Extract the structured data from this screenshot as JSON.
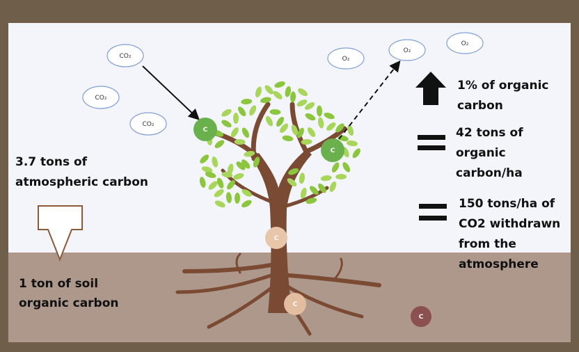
{
  "co2_bubbles": [
    "CO₂",
    "CO₂",
    "CO₂"
  ],
  "o2_bubbles": [
    "O₂",
    "O₂",
    "O₂"
  ],
  "carbon_dots": [
    "C",
    "C",
    "C",
    "C",
    "C"
  ],
  "left": {
    "atmospheric": [
      "3.7 tons of",
      "atmospheric carbon"
    ],
    "soil": [
      "1 ton of soil",
      "organic carbon"
    ]
  },
  "right": [
    [
      "1% of organic",
      "carbon"
    ],
    [
      "42 tons of",
      "organic",
      "carbon/ha"
    ],
    [
      "150 tons/ha of",
      "CO2 withdrawn",
      "from the",
      "atmosphere"
    ]
  ]
}
